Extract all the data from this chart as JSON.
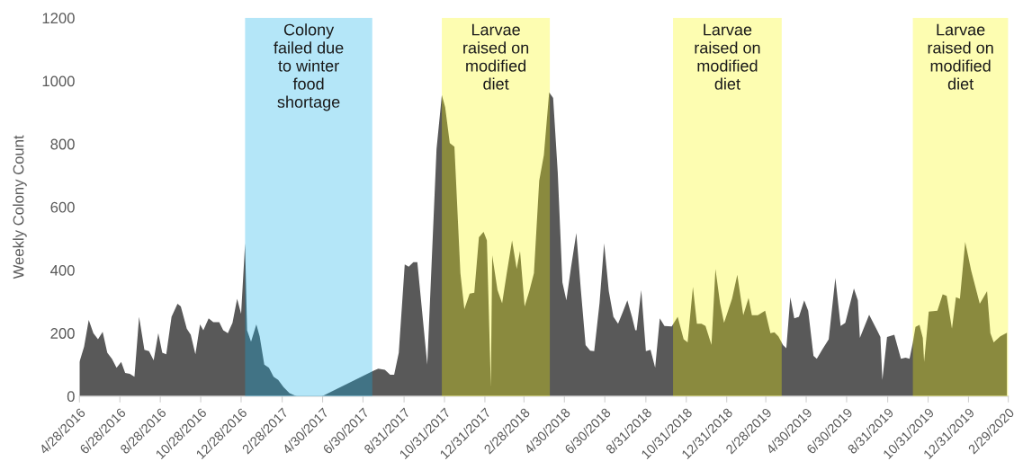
{
  "chart_data": {
    "type": "area",
    "ylabel": "Weekly Colony Count",
    "ylim": [
      0,
      1200
    ],
    "yticks": [
      0,
      200,
      400,
      600,
      800,
      1000,
      1200
    ],
    "xlim": [
      "2016-04-28",
      "2020-02-29"
    ],
    "xticks": [
      {
        "value": "2016-04-28",
        "label": "4/28/2016"
      },
      {
        "value": "2016-06-28",
        "label": "6/28/2016"
      },
      {
        "value": "2016-08-28",
        "label": "8/28/2016"
      },
      {
        "value": "2016-10-28",
        "label": "10/28/2016"
      },
      {
        "value": "2016-12-28",
        "label": "12/28/2016"
      },
      {
        "value": "2017-02-28",
        "label": "2/28/2017"
      },
      {
        "value": "2017-04-30",
        "label": "4/30/2017"
      },
      {
        "value": "2017-06-30",
        "label": "6/30/2017"
      },
      {
        "value": "2017-08-31",
        "label": "8/31/2017"
      },
      {
        "value": "2017-10-31",
        "label": "10/31/2017"
      },
      {
        "value": "2017-12-31",
        "label": "12/31/2017"
      },
      {
        "value": "2018-02-28",
        "label": "2/28/2018"
      },
      {
        "value": "2018-04-30",
        "label": "4/30/2018"
      },
      {
        "value": "2018-06-30",
        "label": "6/30/2018"
      },
      {
        "value": "2018-08-31",
        "label": "8/31/2018"
      },
      {
        "value": "2018-10-31",
        "label": "10/31/2018"
      },
      {
        "value": "2018-12-31",
        "label": "12/31/2018"
      },
      {
        "value": "2019-02-28",
        "label": "2/28/2019"
      },
      {
        "value": "2019-04-30",
        "label": "4/30/2019"
      },
      {
        "value": "2019-06-30",
        "label": "6/30/2019"
      },
      {
        "value": "2019-08-31",
        "label": "8/31/2019"
      },
      {
        "value": "2019-10-31",
        "label": "10/31/2019"
      },
      {
        "value": "2019-12-31",
        "label": "12/31/2019"
      },
      {
        "value": "2020-02-29",
        "label": "2/29/2020"
      }
    ],
    "grid": false,
    "legend": false,
    "series": [
      {
        "color": "#595959",
        "x": [
          "2016-04-28",
          "2016-05-05",
          "2016-05-12",
          "2016-05-19",
          "2016-05-26",
          "2016-06-02",
          "2016-06-09",
          "2016-06-16",
          "2016-06-23",
          "2016-06-30",
          "2016-07-06",
          "2016-07-13",
          "2016-07-20",
          "2016-07-27",
          "2016-08-04",
          "2016-08-11",
          "2016-08-18",
          "2016-08-25",
          "2016-08-31",
          "2016-09-06",
          "2016-09-14",
          "2016-09-23",
          "2016-09-28",
          "2016-10-07",
          "2016-10-13",
          "2016-10-20",
          "2016-10-27",
          "2016-11-01",
          "2016-11-09",
          "2016-11-16",
          "2016-11-25",
          "2016-12-01",
          "2016-12-08",
          "2016-12-15",
          "2016-12-22",
          "2016-12-28",
          "2017-01-03",
          "2017-01-06",
          "2017-01-12",
          "2017-01-20",
          "2017-01-25",
          "2017-02-01",
          "2017-02-08",
          "2017-02-15",
          "2017-02-22",
          "2017-03-02",
          "2017-03-11",
          "2017-03-22",
          "2017-04-29",
          "2017-07-16",
          "2017-07-23",
          "2017-08-02",
          "2017-08-10",
          "2017-08-16",
          "2017-08-23",
          "2017-09-01",
          "2017-09-07",
          "2017-09-14",
          "2017-09-20",
          "2017-10-05",
          "2017-10-19",
          "2017-10-27",
          "2017-11-01",
          "2017-11-08",
          "2017-11-15",
          "2017-11-24",
          "2017-11-30",
          "2017-12-08",
          "2017-12-15",
          "2017-12-22",
          "2017-12-29",
          "2018-01-03",
          "2018-01-09",
          "2018-01-11",
          "2018-01-19",
          "2018-01-26",
          "2018-02-02",
          "2018-02-10",
          "2018-02-17",
          "2018-02-22",
          "2018-03-01",
          "2018-03-08",
          "2018-03-15",
          "2018-03-23",
          "2018-03-30",
          "2018-04-07",
          "2018-04-13",
          "2018-04-20",
          "2018-04-27",
          "2018-05-03",
          "2018-05-10",
          "2018-05-18",
          "2018-05-25",
          "2018-06-01",
          "2018-06-08",
          "2018-06-14",
          "2018-06-22",
          "2018-06-29",
          "2018-07-06",
          "2018-07-13",
          "2018-07-20",
          "2018-07-27",
          "2018-08-03",
          "2018-08-10",
          "2018-08-15",
          "2018-08-17",
          "2018-08-24",
          "2018-08-31",
          "2018-09-07",
          "2018-09-14",
          "2018-09-21",
          "2018-09-28",
          "2018-10-09",
          "2018-10-18",
          "2018-10-27",
          "2018-11-02",
          "2018-11-10",
          "2018-11-16",
          "2018-11-23",
          "2018-11-29",
          "2018-12-08",
          "2018-12-14",
          "2018-12-21",
          "2018-12-27",
          "2019-01-08",
          "2019-01-16",
          "2019-01-25",
          "2019-02-02",
          "2019-02-07",
          "2019-02-16",
          "2019-02-27",
          "2019-03-07",
          "2019-03-13",
          "2019-03-19",
          "2019-03-26",
          "2019-03-31",
          "2019-04-06",
          "2019-04-12",
          "2019-04-19",
          "2019-04-27",
          "2019-05-03",
          "2019-05-11",
          "2019-05-16",
          "2019-05-24",
          "2019-06-03",
          "2019-06-13",
          "2019-06-21",
          "2019-06-28",
          "2019-07-11",
          "2019-07-17",
          "2019-07-20",
          "2019-08-03",
          "2019-08-15",
          "2019-08-20",
          "2019-08-23",
          "2019-08-30",
          "2019-09-10",
          "2019-09-20",
          "2019-09-27",
          "2019-10-03",
          "2019-10-08",
          "2019-10-12",
          "2019-10-18",
          "2019-10-23",
          "2019-10-25",
          "2019-11-01",
          "2019-11-14",
          "2019-11-22",
          "2019-11-28",
          "2019-12-06",
          "2019-12-12",
          "2019-12-18",
          "2019-12-26",
          "2020-01-04",
          "2020-01-17",
          "2020-01-28",
          "2020-02-02",
          "2020-02-07",
          "2020-02-17",
          "2020-02-27"
        ],
        "values": [
          109,
          157,
          242,
          200,
          181,
          204,
          138,
          119,
          90,
          109,
          74,
          71,
          62,
          252,
          147,
          143,
          114,
          200,
          138,
          133,
          252,
          293,
          285,
          214,
          195,
          133,
          228,
          209,
          247,
          235,
          235,
          209,
          200,
          233,
          309,
          261,
          485,
          209,
          173,
          228,
          190,
          100,
          90,
          62,
          52,
          29,
          10,
          0,
          0,
          81,
          87,
          84,
          68,
          68,
          138,
          418,
          411,
          425,
          425,
          100,
          784,
          955,
          917,
          803,
          791,
          390,
          276,
          325,
          328,
          504,
          521,
          494,
          29,
          447,
          337,
          295,
          390,
          494,
          404,
          461,
          285,
          333,
          390,
          684,
          765,
          964,
          946,
          708,
          361,
          304,
          409,
          518,
          333,
          162,
          144,
          143,
          295,
          485,
          333,
          252,
          230,
          266,
          304,
          252,
          209,
          209,
          337,
          143,
          147,
          90,
          247,
          223,
          221,
          252,
          181,
          171,
          347,
          230,
          230,
          223,
          163,
          404,
          295,
          233,
          309,
          385,
          257,
          312,
          257,
          257,
          271,
          200,
          203,
          190,
          162,
          152,
          314,
          247,
          252,
          304,
          271,
          128,
          119,
          147,
          181,
          375,
          223,
          233,
          342,
          304,
          185,
          258,
          209,
          188,
          52,
          188,
          195,
          119,
          122,
          119,
          171,
          220,
          226,
          185,
          109,
          268,
          271,
          323,
          318,
          214,
          314,
          309,
          489,
          399,
          293,
          333,
          200,
          171,
          190,
          201
        ]
      }
    ],
    "bands": [
      {
        "axis": "x",
        "from": "2017-01-03",
        "to": "2017-07-14",
        "color": "#0daee8",
        "label": "Colony\nfailed due\nto winter\nfood\nshortage"
      },
      {
        "axis": "x",
        "from": "2017-10-27",
        "to": "2018-04-08",
        "color": "#f9f903",
        "label": "Larvae\nraised on\nmodified\ndiet"
      },
      {
        "axis": "x",
        "from": "2018-10-11",
        "to": "2019-03-24",
        "color": "#f9f903",
        "label": "Larvae\nraised on\nmodified\ndiet"
      },
      {
        "axis": "x",
        "from": "2019-10-08",
        "to": "2020-02-29",
        "color": "#f9f903",
        "label": "Larvae\nraised on\nmodified\ndiet"
      }
    ]
  }
}
